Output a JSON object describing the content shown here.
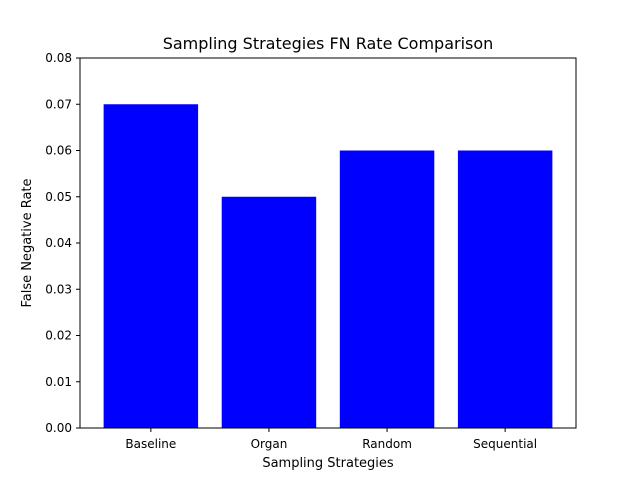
{
  "chart_data": {
    "type": "bar",
    "title": "Sampling Strategies FN Rate Comparison",
    "xlabel": "Sampling Strategies",
    "ylabel": "False Negative Rate",
    "categories": [
      "Baseline",
      "Organ",
      "Random",
      "Sequential"
    ],
    "values": [
      0.07,
      0.05,
      0.06,
      0.06
    ],
    "ylim": [
      0,
      0.08
    ],
    "yticks": [
      "0.00",
      "0.01",
      "0.02",
      "0.03",
      "0.04",
      "0.05",
      "0.06",
      "0.07",
      "0.08"
    ],
    "bar_color": "#0000ff",
    "grid": false,
    "legend": "none"
  }
}
